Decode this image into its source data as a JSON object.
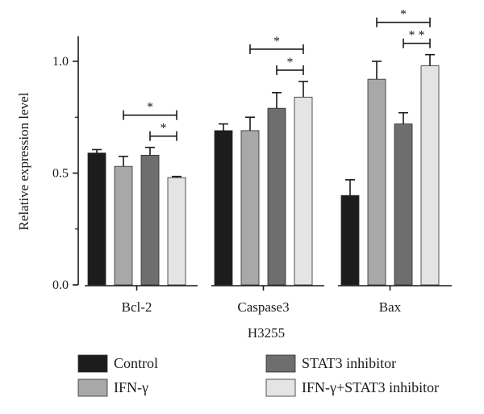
{
  "chart_data": {
    "type": "bar",
    "title": "",
    "xlabel": "H3255",
    "ylabel": "Relative expression level",
    "ylim": [
      0,
      1.1
    ],
    "yticks": [
      "0.0",
      "0.5",
      "1.0"
    ],
    "categories": [
      "Bcl-2",
      "Caspase3",
      "Bax"
    ],
    "series": [
      {
        "name": "Control",
        "color": "#1c1c1c",
        "values": [
          0.59,
          0.69,
          0.4
        ],
        "errors": [
          0.015,
          0.03,
          0.07
        ]
      },
      {
        "name": "IFN-γ",
        "color": "#a8a8a8",
        "values": [
          0.53,
          0.69,
          0.92
        ],
        "errors": [
          0.045,
          0.06,
          0.08
        ]
      },
      {
        "name": "STAT3 inhibitor",
        "color": "#6e6e6e",
        "values": [
          0.58,
          0.79,
          0.72
        ],
        "errors": [
          0.035,
          0.07,
          0.05
        ]
      },
      {
        "name": "IFN-γ+STAT3 inhibitor",
        "color": "#e4e4e4",
        "values": [
          0.48,
          0.84,
          0.98
        ],
        "errors": [
          0.005,
          0.07,
          0.05
        ]
      }
    ],
    "legend_position": "bottom",
    "significance": [
      {
        "category": 0,
        "from": 1,
        "to": 3,
        "label": "*"
      },
      {
        "category": 0,
        "from": 2,
        "to": 3,
        "label": "*"
      },
      {
        "category": 1,
        "from": 1,
        "to": 3,
        "label": "*"
      },
      {
        "category": 1,
        "from": 2,
        "to": 3,
        "label": "*"
      },
      {
        "category": 2,
        "from": 1,
        "to": 3,
        "label": "*"
      },
      {
        "category": 2,
        "from": 2,
        "to": 3,
        "label": "* *"
      }
    ]
  }
}
